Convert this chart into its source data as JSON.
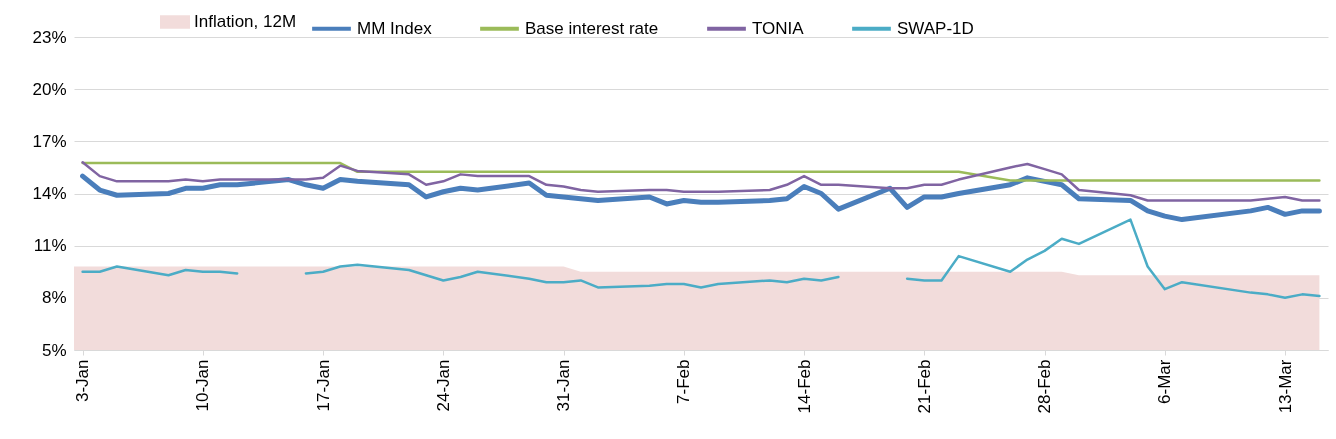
{
  "chart_data": {
    "type": "line",
    "x": [
      "--01-03",
      "--01-04",
      "--01-05",
      "--01-08",
      "--01-09",
      "--01-10",
      "--01-11",
      "--01-12",
      "--01-15",
      "--01-16",
      "--01-17",
      "--01-18",
      "--01-19",
      "--01-22",
      "--01-23",
      "--01-24",
      "--01-25",
      "--01-26",
      "--01-29",
      "--01-30",
      "--01-31",
      "--02-01",
      "--02-02",
      "--02-05",
      "--02-06",
      "--02-07",
      "--02-08",
      "--02-09",
      "--02-12",
      "--02-13",
      "--02-14",
      "--02-15",
      "--02-16",
      "--02-19",
      "--02-20",
      "--02-21",
      "--02-22",
      "--02-23",
      "--02-26",
      "--02-27",
      "--02-28",
      "--02-29",
      "--03-01",
      "--03-04",
      "--03-05",
      "--03-06",
      "--03-07",
      "--03-11",
      "--03-12",
      "--03-13",
      "--03-14",
      "--03-15"
    ],
    "series": [
      {
        "name": "Inflation, 12M",
        "type": "area",
        "color": "#f2dcdb",
        "x": [
          "--01-02T12:00",
          "--01-31",
          "--02-01",
          "--02-29",
          "--03-01",
          "--03-15"
        ],
        "values": [
          9.8,
          9.8,
          9.5,
          9.5,
          9.3,
          9.3
        ]
      },
      {
        "name": "MM Index",
        "color": "#4a7ebb",
        "values": [
          15.0,
          14.2,
          13.9,
          14.0,
          14.3,
          14.3,
          14.5,
          14.5,
          14.8,
          14.5,
          14.3,
          14.8,
          14.7,
          14.5,
          13.8,
          14.1,
          14.3,
          14.2,
          14.6,
          13.9,
          13.8,
          13.7,
          13.6,
          13.8,
          13.4,
          13.6,
          13.5,
          13.5,
          13.6,
          13.7,
          14.4,
          14.0,
          13.1,
          14.3,
          13.2,
          13.8,
          13.8,
          14.0,
          14.5,
          14.9,
          14.7,
          14.5,
          13.7,
          13.6,
          13.0,
          12.7,
          12.5,
          13.0,
          13.2,
          12.8,
          13.0,
          13.0
        ]
      },
      {
        "name": "Base interest rate",
        "color": "#9bbb59",
        "x": [
          "--01-03",
          "--01-18",
          "--01-19",
          "--02-23",
          "--02-26",
          "--03-15"
        ],
        "values": [
          15.75,
          15.75,
          15.25,
          15.25,
          14.75,
          14.75
        ]
      },
      {
        "name": "TONIA",
        "color": "#8064a2",
        "values": [
          15.8,
          15.0,
          14.7,
          14.7,
          14.8,
          14.7,
          14.8,
          14.8,
          14.8,
          14.8,
          14.9,
          15.6,
          15.3,
          15.1,
          14.5,
          14.7,
          15.1,
          15.0,
          15.0,
          14.5,
          14.4,
          14.2,
          14.1,
          14.2,
          14.2,
          14.1,
          14.1,
          14.1,
          14.2,
          14.5,
          15.0,
          14.5,
          14.5,
          14.3,
          14.3,
          14.5,
          14.5,
          14.8,
          15.5,
          15.7,
          15.4,
          15.1,
          14.2,
          13.9,
          13.6,
          13.6,
          13.6,
          13.6,
          13.7,
          13.8,
          13.6,
          13.6
        ]
      },
      {
        "name": "SWAP-1D",
        "color": "#4bacc6",
        "values": [
          9.5,
          9.5,
          9.8,
          9.3,
          9.6,
          9.5,
          9.5,
          9.4,
          null,
          9.4,
          9.5,
          9.8,
          9.9,
          9.6,
          9.3,
          9.0,
          9.2,
          9.5,
          9.1,
          8.9,
          8.9,
          9.0,
          8.6,
          8.7,
          8.8,
          8.8,
          8.6,
          8.8,
          9.0,
          8.9,
          9.1,
          9.0,
          9.2,
          null,
          9.1,
          9.0,
          9.0,
          10.4,
          9.5,
          10.2,
          10.7,
          11.4,
          11.1,
          12.5,
          9.8,
          8.5,
          8.9,
          8.3,
          8.2,
          8.0,
          8.2,
          8.1
        ]
      }
    ],
    "xlim": [
      "--01-02T12:00",
      "--03-15T12:00"
    ],
    "xticks": [
      {
        "value": "--01-03",
        "label": "3-Jan"
      },
      {
        "value": "--01-10",
        "label": "10-Jan"
      },
      {
        "value": "--01-17",
        "label": "17-Jan"
      },
      {
        "value": "--01-24",
        "label": "24-Jan"
      },
      {
        "value": "--01-31",
        "label": "31-Jan"
      },
      {
        "value": "--02-07",
        "label": "7-Feb"
      },
      {
        "value": "--02-14",
        "label": "14-Feb"
      },
      {
        "value": "--02-21",
        "label": "21-Feb"
      },
      {
        "value": "--02-28",
        "label": "28-Feb"
      },
      {
        "value": "--03-06",
        "label": "6-Mar"
      },
      {
        "value": "--03-13",
        "label": "13-Mar"
      }
    ],
    "ylim": [
      5,
      23
    ],
    "yticks": [
      {
        "value": 5,
        "label": "5%"
      },
      {
        "value": 8,
        "label": "8%"
      },
      {
        "value": 11,
        "label": "11%"
      },
      {
        "value": 14,
        "label": "14%"
      },
      {
        "value": 17,
        "label": "17%"
      },
      {
        "value": 20,
        "label": "20%"
      },
      {
        "value": 23,
        "label": "23%"
      }
    ],
    "grid": "y",
    "legend": "top"
  }
}
